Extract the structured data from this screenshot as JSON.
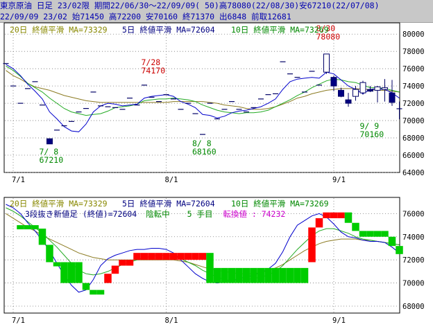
{
  "header": {
    "line1": "東京原油 日足 23/02限 期間22/06/30～22/09/09( 50)高78080(22/08/30)安67210(22/07/08)",
    "line2": "22/09/09 23/02 始71450 高72200 安70160 終71370 出6848 前取12681"
  },
  "colors": {
    "ma20": "#8b7a20",
    "ma5": "#0000cc",
    "ma10": "#22aa22",
    "legend_ma20": "#888800",
    "legend_ma5": "#000080",
    "legend_ma10": "#008800",
    "up_brick": "#ff0000",
    "down_brick": "#00cc00",
    "annotation_high": "#cc0000",
    "annotation_low": "#008800",
    "turn_value": "#cc00cc",
    "grid": "#777777"
  },
  "chart_data": [
    {
      "type": "candlestick",
      "legend": {
        "ma20": "20日 終値平滑 MA=73329",
        "ma5": "5日 終値平滑 MA=72604",
        "ma10": "10日 終値平滑 MA=73269"
      },
      "x_tick_labels": [
        "7/1",
        "8/1",
        "9/1"
      ],
      "x_tick_index": [
        1,
        22,
        45
      ],
      "y_tick_labels": [
        "80000",
        "78000",
        "76000",
        "74000",
        "72000",
        "70000",
        "68000",
        "66000",
        "64000"
      ],
      "ylim": [
        64000,
        81300
      ],
      "annotations": [
        {
          "text": "7/28",
          "value": "74170",
          "index": 20,
          "price": 74170,
          "color": "high"
        },
        {
          "text": "8/30",
          "value": "78080",
          "index": 44,
          "price": 78080,
          "color": "high"
        },
        {
          "text": "7/ 8",
          "value": "67210",
          "index": 6,
          "price": 67210,
          "color": "low"
        },
        {
          "text": "8/ 8",
          "value": "68160",
          "index": 27,
          "price": 68160,
          "color": "low"
        },
        {
          "text": "9/ 9",
          "value": "70160",
          "index": 50,
          "price": 70160,
          "color": "low"
        }
      ],
      "candles": [
        [
          76600,
          76600,
          76600,
          76600
        ],
        [
          74000,
          74000,
          74000,
          74000
        ],
        [
          72000,
          72000,
          72000,
          72000
        ],
        [
          73700,
          73700,
          73700,
          73700
        ],
        [
          74500,
          74500,
          74500,
          74500
        ],
        [
          71800,
          71800,
          71800,
          71800
        ],
        [
          67900,
          67900,
          67300,
          67300
        ],
        [
          68900,
          68900,
          68900,
          68900
        ],
        [
          69400,
          69400,
          69400,
          69400
        ],
        [
          69900,
          69900,
          69900,
          69900
        ],
        [
          71000,
          71000,
          71000,
          71000
        ],
        [
          71400,
          71400,
          71400,
          71400
        ],
        [
          73300,
          73300,
          73300,
          73300
        ],
        [
          71700,
          71700,
          71700,
          71700
        ],
        [
          71600,
          71600,
          71600,
          71600
        ],
        [
          71500,
          71500,
          71500,
          71500
        ],
        [
          71300,
          71300,
          71300,
          71300
        ],
        [
          72600,
          72600,
          72600,
          72600
        ],
        [
          71800,
          71800,
          71800,
          71800
        ],
        [
          74100,
          74100,
          74100,
          74100
        ],
        [
          72700,
          72700,
          72700,
          72700
        ],
        [
          72200,
          72200,
          72200,
          72200
        ],
        [
          73000,
          73000,
          73000,
          73000
        ],
        [
          72500,
          72500,
          72500,
          72500
        ],
        [
          71300,
          71300,
          71300,
          71300
        ],
        [
          72000,
          72000,
          72000,
          72000
        ],
        [
          70800,
          70800,
          70800,
          70800
        ],
        [
          68400,
          68400,
          68400,
          68400
        ],
        [
          72000,
          72000,
          72000,
          72000
        ],
        [
          70200,
          70200,
          70200,
          70200
        ],
        [
          71300,
          71300,
          71300,
          71300
        ],
        [
          72200,
          72200,
          72200,
          72200
        ],
        [
          71300,
          71300,
          71300,
          71300
        ],
        [
          71000,
          71000,
          71000,
          71000
        ],
        [
          71500,
          71500,
          71500,
          71500
        ],
        [
          72500,
          72500,
          72500,
          72500
        ],
        [
          73000,
          73000,
          73000,
          73000
        ],
        [
          73100,
          73100,
          73100,
          73100
        ],
        [
          76800,
          76800,
          76800,
          76800
        ],
        [
          75400,
          75400,
          75400,
          75400
        ],
        [
          75000,
          75000,
          75000,
          75000
        ],
        [
          73300,
          73300,
          73300,
          73300
        ],
        [
          75700,
          75700,
          75700,
          75700
        ],
        [
          74100,
          74100,
          74100,
          74100
        ],
        [
          75600,
          77700,
          75400,
          77700
        ],
        [
          75000,
          75200,
          73400,
          74000
        ],
        [
          73500,
          73800,
          72700,
          72800
        ],
        [
          72400,
          73200,
          71600,
          72000
        ],
        [
          72800,
          74000,
          72300,
          73600
        ],
        [
          73200,
          74600,
          73000,
          74400
        ],
        [
          73600,
          74000,
          73300,
          73400
        ],
        [
          73500,
          74000,
          72100,
          73900
        ],
        [
          73600,
          74800,
          72200,
          73800
        ],
        [
          73200,
          74700,
          71700,
          72100
        ],
        [
          71450,
          72200,
          70160,
          71370
        ]
      ],
      "ma5": [
        76500,
        76000,
        75200,
        74200,
        73400,
        72500,
        71000,
        70200,
        69300,
        68800,
        68700,
        69600,
        71000,
        71700,
        72000,
        71900,
        71700,
        71800,
        71900,
        72600,
        72800,
        72900,
        73000,
        72800,
        72200,
        71900,
        71500,
        70700,
        70600,
        70300,
        70500,
        70900,
        71100,
        71200,
        71400,
        71600,
        72000,
        72500,
        73600,
        74500,
        74800,
        74900,
        75000,
        74900,
        75600,
        75400,
        74700,
        74000,
        73600,
        73100,
        73600,
        73700,
        73600,
        73200,
        72600
      ],
      "ma10": [
        76300,
        75800,
        75100,
        74300,
        73800,
        73300,
        72600,
        72000,
        71400,
        71000,
        70800,
        70600,
        70700,
        70800,
        71100,
        71500,
        71600,
        71700,
        71900,
        72300,
        72400,
        72500,
        72500,
        72600,
        72500,
        72400,
        72200,
        71800,
        71500,
        71200,
        71000,
        70900,
        70800,
        70900,
        70900,
        71000,
        71200,
        71600,
        72000,
        72400,
        72900,
        73300,
        73800,
        74200,
        74600,
        74800,
        74700,
        74500,
        74400,
        74100,
        73800,
        73800,
        73700,
        73500,
        73300
      ],
      "ma20": [
        75800,
        75200,
        74800,
        74300,
        73900,
        73700,
        73500,
        73200,
        72900,
        72700,
        72500,
        72300,
        72200,
        72100,
        72100,
        72100,
        72100,
        72100,
        72100,
        72100,
        72100,
        72100,
        72100,
        72200,
        72200,
        72200,
        72200,
        72200,
        72100,
        72000,
        71800,
        71700,
        71600,
        71400,
        71300,
        71300,
        71400,
        71600,
        71900,
        72200,
        72600,
        72800,
        73100,
        73300,
        73500,
        73600,
        73700,
        73700,
        73700,
        73600,
        73600,
        73500,
        73500,
        73400,
        73300
      ]
    },
    {
      "type": "three-line-break",
      "legend": {
        "ma20": "20日 終値平滑 MA=73329",
        "ma5": "5日 終値平滑 MA=72604",
        "ma10": "10日 終値平滑 MA=73269"
      },
      "subtitle": {
        "prefix": "3段抜き新値足 (終値)=72604",
        "state": "陰転中",
        "count": "5 手目",
        "turn": "転換値 : 74232"
      },
      "x_tick_labels": [
        "7/1",
        "8/1",
        "9/1"
      ],
      "x_tick_index": [
        1,
        22,
        45
      ],
      "y_tick_labels": [
        "76000",
        "74000",
        "72000",
        "70000",
        "68000"
      ],
      "ylim": [
        67400,
        77400
      ],
      "bricks": [
        {
          "i": 2,
          "open": 75000,
          "close": 75000,
          "dir": "down"
        },
        {
          "i": 3,
          "open": 75000,
          "close": 75000,
          "dir": "down"
        },
        {
          "i": 4,
          "open": 75000,
          "close": 74700,
          "dir": "down"
        },
        {
          "i": 5,
          "open": 74700,
          "close": 73300,
          "dir": "down"
        },
        {
          "i": 6,
          "open": 73300,
          "close": 71800,
          "dir": "down"
        },
        {
          "i": 7,
          "open": 71800,
          "close": 71800,
          "dir": "down"
        },
        {
          "i": 8,
          "open": 71800,
          "close": 70000,
          "dir": "down"
        },
        {
          "i": 9,
          "open": 71800,
          "close": 70000,
          "dir": "down"
        },
        {
          "i": 10,
          "open": 71800,
          "close": 70000,
          "dir": "down"
        },
        {
          "i": 11,
          "open": 70000,
          "close": 69400,
          "dir": "down"
        },
        {
          "i": 12,
          "open": 69400,
          "close": 69000,
          "dir": "down"
        },
        {
          "i": 13,
          "open": 69400,
          "close": 69000,
          "dir": "down"
        },
        {
          "i": 14,
          "open": 70000,
          "close": 70800,
          "dir": "up"
        },
        {
          "i": 15,
          "open": 70800,
          "close": 71500,
          "dir": "up"
        },
        {
          "i": 16,
          "open": 71500,
          "close": 72000,
          "dir": "up"
        },
        {
          "i": 17,
          "open": 71500,
          "close": 72000,
          "dir": "up"
        },
        {
          "i": 18,
          "open": 72000,
          "close": 72600,
          "dir": "up"
        },
        {
          "i": 19,
          "open": 72000,
          "close": 72600,
          "dir": "up"
        },
        {
          "i": 20,
          "open": 72000,
          "close": 72600,
          "dir": "up"
        },
        {
          "i": 21,
          "open": 72000,
          "close": 72600,
          "dir": "up"
        },
        {
          "i": 22,
          "open": 72000,
          "close": 72600,
          "dir": "up"
        },
        {
          "i": 23,
          "open": 72000,
          "close": 72600,
          "dir": "up"
        },
        {
          "i": 24,
          "open": 72000,
          "close": 72600,
          "dir": "up"
        },
        {
          "i": 25,
          "open": 72000,
          "close": 72600,
          "dir": "up"
        },
        {
          "i": 26,
          "open": 72000,
          "close": 72600,
          "dir": "up"
        },
        {
          "i": 27,
          "open": 72000,
          "close": 72600,
          "dir": "up"
        },
        {
          "i": 28,
          "open": 72600,
          "close": 70000,
          "dir": "down"
        },
        {
          "i": 29,
          "open": 71300,
          "close": 70000,
          "dir": "down"
        },
        {
          "i": 30,
          "open": 71300,
          "close": 70000,
          "dir": "down"
        },
        {
          "i": 31,
          "open": 71300,
          "close": 70000,
          "dir": "down"
        },
        {
          "i": 32,
          "open": 71300,
          "close": 70000,
          "dir": "down"
        },
        {
          "i": 33,
          "open": 71300,
          "close": 70000,
          "dir": "down"
        },
        {
          "i": 34,
          "open": 71300,
          "close": 70000,
          "dir": "down"
        },
        {
          "i": 35,
          "open": 71300,
          "close": 70000,
          "dir": "down"
        },
        {
          "i": 36,
          "open": 71300,
          "close": 70000,
          "dir": "down"
        },
        {
          "i": 37,
          "open": 71300,
          "close": 70000,
          "dir": "down"
        },
        {
          "i": 38,
          "open": 71300,
          "close": 70000,
          "dir": "down"
        },
        {
          "i": 39,
          "open": 71300,
          "close": 70000,
          "dir": "down"
        },
        {
          "i": 40,
          "open": 71300,
          "close": 70000,
          "dir": "down"
        },
        {
          "i": 41,
          "open": 71300,
          "close": 70000,
          "dir": "down"
        },
        {
          "i": 42,
          "open": 71800,
          "close": 74800,
          "dir": "up"
        },
        {
          "i": 43,
          "open": 74800,
          "close": 75600,
          "dir": "up"
        },
        {
          "i": 44,
          "open": 75600,
          "close": 76100,
          "dir": "up"
        },
        {
          "i": 45,
          "open": 75600,
          "close": 76100,
          "dir": "up"
        },
        {
          "i": 46,
          "open": 75600,
          "close": 76100,
          "dir": "up"
        },
        {
          "i": 47,
          "open": 76100,
          "close": 75200,
          "dir": "down"
        },
        {
          "i": 48,
          "open": 75200,
          "close": 74500,
          "dir": "down"
        },
        {
          "i": 49,
          "open": 74500,
          "close": 74000,
          "dir": "down"
        },
        {
          "i": 50,
          "open": 74500,
          "close": 74000,
          "dir": "down"
        },
        {
          "i": 51,
          "open": 74500,
          "close": 74000,
          "dir": "down"
        },
        {
          "i": 52,
          "open": 74500,
          "close": 74000,
          "dir": "down"
        },
        {
          "i": 53,
          "open": 74000,
          "close": 73200,
          "dir": "down"
        },
        {
          "i": 54,
          "open": 73200,
          "close": 72500,
          "dir": "down"
        }
      ],
      "ma5": [
        76800,
        76500,
        76000,
        75200,
        74500,
        73700,
        72800,
        71700,
        70700,
        69800,
        69200,
        69400,
        70300,
        71500,
        72100,
        72400,
        72600,
        72800,
        72900,
        72900,
        73000,
        73000,
        72900,
        72600,
        72000,
        71400,
        70800,
        70400,
        70100,
        70000,
        70100,
        70200,
        70400,
        70500,
        70700,
        70900,
        71200,
        71700,
        72700,
        74000,
        75000,
        75400,
        75800,
        76000,
        75700,
        75100,
        74400,
        74000,
        73900,
        73700,
        73600,
        73600,
        73500,
        73100,
        72600
      ],
      "ma10": [
        76500,
        76200,
        75800,
        75300,
        74800,
        74300,
        73700,
        73100,
        72400,
        71700,
        71100,
        70800,
        70700,
        70800,
        71000,
        71300,
        71600,
        71800,
        72000,
        72200,
        72300,
        72400,
        72400,
        72300,
        72100,
        71800,
        71500,
        71100,
        70800,
        70500,
        70300,
        70200,
        70200,
        70300,
        70400,
        70500,
        70700,
        71000,
        71500,
        72200,
        72900,
        73500,
        74100,
        74500,
        74700,
        74700,
        74500,
        74300,
        74000,
        73800,
        73700,
        73600,
        73500,
        73400,
        73300
      ],
      "ma20": [
        76000,
        75600,
        75200,
        74800,
        74500,
        74100,
        73800,
        73500,
        73200,
        72900,
        72600,
        72400,
        72200,
        72100,
        72000,
        72000,
        72000,
        72000,
        72000,
        72000,
        72000,
        72000,
        72000,
        72000,
        71900,
        71800,
        71600,
        71400,
        71200,
        71100,
        71000,
        70900,
        70800,
        70800,
        70800,
        70900,
        71100,
        71300,
        71600,
        72000,
        72400,
        72800,
        73100,
        73400,
        73600,
        73700,
        73800,
        73800,
        73800,
        73700,
        73700,
        73600,
        73500,
        73400,
        73300
      ]
    }
  ]
}
